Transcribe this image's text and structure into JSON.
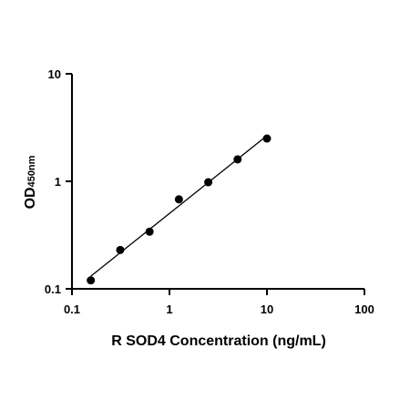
{
  "chart_data": {
    "type": "scatter",
    "xscale": "log",
    "yscale": "log",
    "xlim": [
      0.1,
      100
    ],
    "ylim": [
      0.1,
      10
    ],
    "xticks": [
      {
        "value": 0.1,
        "label": "0.1"
      },
      {
        "value": 1,
        "label": "1"
      },
      {
        "value": 10,
        "label": "10"
      },
      {
        "value": 100,
        "label": "100"
      }
    ],
    "yticks": [
      {
        "value": 0.1,
        "label": "0.1"
      },
      {
        "value": 1,
        "label": "1"
      },
      {
        "value": 10,
        "label": "10"
      }
    ],
    "xlabel": "R SOD4 Concentration (ng/mL)",
    "ylabel_main": "OD",
    "ylabel_sub": "450nm",
    "grid": false,
    "points": [
      {
        "x": 0.156,
        "y": 0.12
      },
      {
        "x": 0.3125,
        "y": 0.23
      },
      {
        "x": 0.625,
        "y": 0.34
      },
      {
        "x": 1.25,
        "y": 0.68
      },
      {
        "x": 2.5,
        "y": 0.98
      },
      {
        "x": 5,
        "y": 1.6
      },
      {
        "x": 10,
        "y": 2.5
      }
    ],
    "fit_line_color": "#000000",
    "marker_color": "#000000"
  }
}
